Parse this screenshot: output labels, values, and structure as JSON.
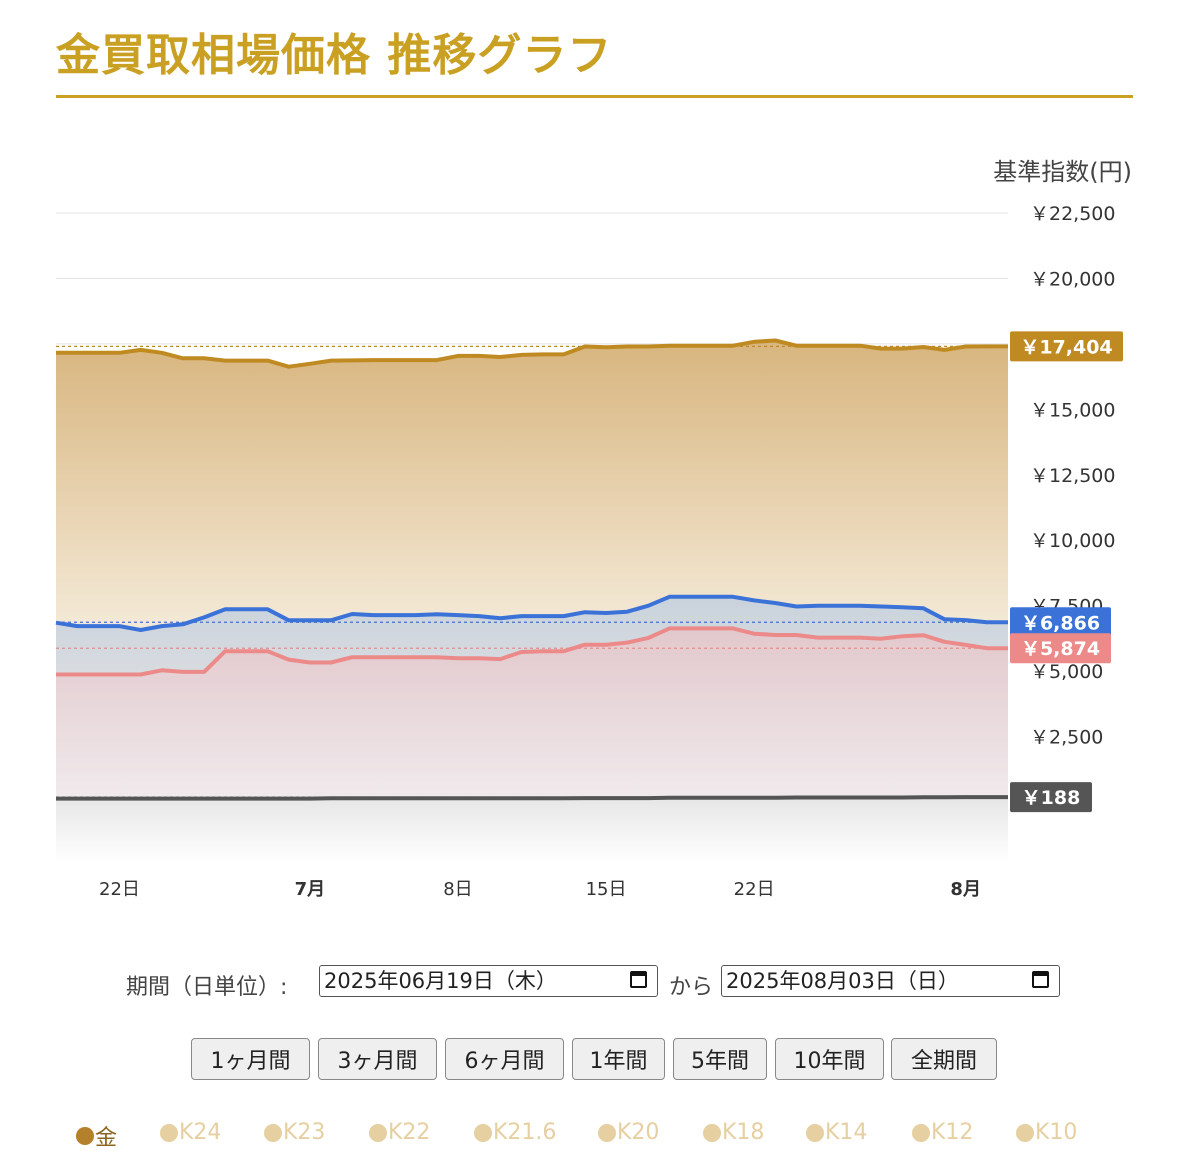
{
  "page": {
    "title": "金買取相場価格 推移グラフ",
    "y_unit": "基準指数(円)"
  },
  "chart_data": {
    "type": "area",
    "ylim": [
      0,
      22500
    ],
    "yticks": [
      {
        "value": 2500,
        "label": "￥2,500"
      },
      {
        "value": 5000,
        "label": "￥5,000"
      },
      {
        "value": 7500,
        "label": "￥7,500"
      },
      {
        "value": 10000,
        "label": "￥10,000"
      },
      {
        "value": 12500,
        "label": "￥12,500"
      },
      {
        "value": 15000,
        "label": "￥15,000"
      },
      {
        "value": 17500,
        "label": ""
      },
      {
        "value": 20000,
        "label": "￥20,000"
      },
      {
        "value": 22500,
        "label": "￥22,500"
      }
    ],
    "xticks": [
      {
        "x": "2025-06-22",
        "label": "22日",
        "bold": false
      },
      {
        "x": "2025-07-01",
        "label": "7月",
        "bold": true
      },
      {
        "x": "2025-07-08",
        "label": "8日",
        "bold": false
      },
      {
        "x": "2025-07-15",
        "label": "15日",
        "bold": false
      },
      {
        "x": "2025-07-22",
        "label": "22日",
        "bold": false
      },
      {
        "x": "2025-08-01",
        "label": "8月",
        "bold": true
      }
    ],
    "x": [
      "2025-06-19",
      "2025-06-20",
      "2025-06-21",
      "2025-06-22",
      "2025-06-23",
      "2025-06-24",
      "2025-06-25",
      "2025-06-26",
      "2025-06-27",
      "2025-06-28",
      "2025-06-29",
      "2025-06-30",
      "2025-07-01",
      "2025-07-02",
      "2025-07-03",
      "2025-07-04",
      "2025-07-05",
      "2025-07-06",
      "2025-07-07",
      "2025-07-08",
      "2025-07-09",
      "2025-07-10",
      "2025-07-11",
      "2025-07-12",
      "2025-07-13",
      "2025-07-14",
      "2025-07-15",
      "2025-07-16",
      "2025-07-17",
      "2025-07-18",
      "2025-07-19",
      "2025-07-20",
      "2025-07-21",
      "2025-07-22",
      "2025-07-23",
      "2025-07-24",
      "2025-07-25",
      "2025-07-26",
      "2025-07-27",
      "2025-07-28",
      "2025-07-29",
      "2025-07-30",
      "2025-07-31",
      "2025-08-01",
      "2025-08-02",
      "2025-08-03"
    ],
    "series": [
      {
        "name": "金",
        "color": "#c08a22",
        "fill_top": "#d8b57e",
        "fill_bottom": "#f4ead8",
        "latest_label": "￥17,404",
        "values": [
          17160,
          17160,
          17160,
          17160,
          17270,
          17160,
          16950,
          16950,
          16860,
          16860,
          16860,
          16630,
          16740,
          16860,
          16870,
          16880,
          16880,
          16880,
          16880,
          17040,
          17040,
          17000,
          17080,
          17100,
          17100,
          17400,
          17370,
          17400,
          17400,
          17430,
          17430,
          17430,
          17430,
          17580,
          17630,
          17430,
          17430,
          17430,
          17430,
          17320,
          17320,
          17380,
          17270,
          17400,
          17404,
          17404
        ]
      },
      {
        "name": "",
        "color": "#3a72d8",
        "fill_top": "#c9d2dc",
        "fill_bottom": "#d8dce0",
        "latest_label": "￥6,866",
        "values": [
          6850,
          6720,
          6720,
          6720,
          6570,
          6720,
          6790,
          7050,
          7360,
          7360,
          7360,
          6940,
          6940,
          6940,
          7180,
          7140,
          7140,
          7140,
          7170,
          7140,
          7100,
          7020,
          7100,
          7100,
          7100,
          7250,
          7220,
          7270,
          7500,
          7840,
          7840,
          7840,
          7840,
          7700,
          7600,
          7470,
          7500,
          7500,
          7500,
          7470,
          7440,
          7400,
          6980,
          6950,
          6866,
          6866
        ]
      },
      {
        "name": "",
        "color": "#ec8a8a",
        "fill_top": "#e2c8cc",
        "fill_bottom": "#f0eaec",
        "latest_label": "￥5,874",
        "values": [
          4870,
          4870,
          4870,
          4870,
          4870,
          5030,
          4970,
          4970,
          5760,
          5760,
          5760,
          5440,
          5330,
          5330,
          5530,
          5530,
          5530,
          5530,
          5530,
          5490,
          5490,
          5460,
          5730,
          5760,
          5760,
          6010,
          6010,
          6090,
          6270,
          6630,
          6630,
          6630,
          6630,
          6430,
          6380,
          6380,
          6280,
          6280,
          6280,
          6240,
          6330,
          6370,
          6120,
          6000,
          5874,
          5874
        ]
      },
      {
        "name": "",
        "color": "#555555",
        "fill_top": "#e6e6e6",
        "fill_bottom": "#ffffff",
        "latest_label": "￥188",
        "values": [
          130,
          130,
          130,
          130,
          130,
          130,
          130,
          130,
          130,
          130,
          130,
          130,
          130,
          140,
          140,
          140,
          140,
          140,
          140,
          140,
          140,
          140,
          140,
          140,
          140,
          150,
          150,
          150,
          150,
          160,
          160,
          160,
          160,
          160,
          160,
          170,
          170,
          170,
          170,
          170,
          170,
          180,
          180,
          188,
          188,
          188
        ]
      }
    ],
    "grid": true,
    "legend_position": "bottom"
  },
  "period": {
    "label": "期間（日単位）:",
    "from_date": "2025年06月19日（木）",
    "connector": "から",
    "to_date": "2025年08月03日（日）"
  },
  "range_buttons": [
    "1ヶ月間",
    "3ヶ月間",
    "6ヶ月間",
    "1年間",
    "5年間",
    "10年間",
    "全期間"
  ],
  "legend": [
    {
      "label": "金",
      "active": true,
      "dot_color": "#b5802a",
      "text_color": "#8a6520"
    },
    {
      "label": "K24",
      "active": false,
      "dot_color": "#e6cfa0",
      "text_color": "#e6cfa0"
    },
    {
      "label": "K23",
      "active": false,
      "dot_color": "#e6cfa0",
      "text_color": "#e6cfa0"
    },
    {
      "label": "K22",
      "active": false,
      "dot_color": "#e6cfa0",
      "text_color": "#e6cfa0"
    },
    {
      "label": "K21.6",
      "active": false,
      "dot_color": "#e6cfa0",
      "text_color": "#e6cfa0"
    },
    {
      "label": "K20",
      "active": false,
      "dot_color": "#e6cfa0",
      "text_color": "#e6cfa0"
    },
    {
      "label": "K18",
      "active": false,
      "dot_color": "#e6cfa0",
      "text_color": "#e6cfa0"
    },
    {
      "label": "K14",
      "active": false,
      "dot_color": "#e6cfa0",
      "text_color": "#e6cfa0"
    },
    {
      "label": "K12",
      "active": false,
      "dot_color": "#e6cfa0",
      "text_color": "#e6cfa0"
    },
    {
      "label": "K10",
      "active": false,
      "dot_color": "#e6cfa0",
      "text_color": "#e6cfa0"
    }
  ]
}
